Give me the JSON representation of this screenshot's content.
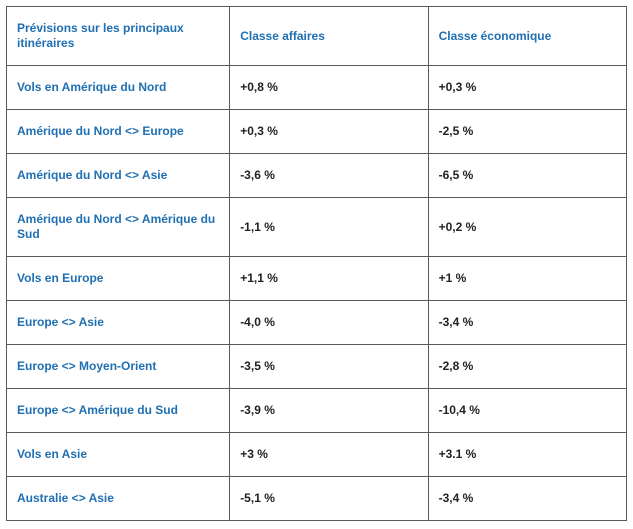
{
  "table": {
    "type": "table",
    "background_color": "#ffffff",
    "border_color": "#5a5a5a",
    "header_text_color": "#1f6fb2",
    "row_label_text_color": "#1f6fb2",
    "value_text_color": "#222222",
    "font_family": "Arial",
    "cell_fontsize_pt": 9,
    "font_weight": "bold",
    "column_widths_percent": [
      36,
      32,
      32
    ],
    "columns": [
      "Prévisions sur les principaux itinéraires",
      "Classe affaires",
      "Classe économique"
    ],
    "rows": [
      {
        "label": "Vols en Amérique du Nord",
        "business": "+0,8 %",
        "economy": "+0,3 %"
      },
      {
        "label": "Amérique du Nord <> Europe",
        "business": "+0,3 %",
        "economy": "-2,5 %"
      },
      {
        "label": "Amérique du Nord <> Asie",
        "business": "-3,6 %",
        "economy": "-6,5 %"
      },
      {
        "label": "Amérique du Nord <> Amérique du Sud",
        "business": "-1,1 %",
        "economy": "+0,2 %"
      },
      {
        "label": "Vols en Europe",
        "business": "+1,1 %",
        "economy": "+1 %"
      },
      {
        "label": "Europe <> Asie",
        "business": "-4,0 %",
        "economy": "-3,4 %"
      },
      {
        "label": "Europe <> Moyen-Orient",
        "business": "-3,5 %",
        "economy": "-2,8 %"
      },
      {
        "label": "Europe <> Amérique du Sud",
        "business": "-3,9 %",
        "economy": "-10,4 %"
      },
      {
        "label": "Vols en Asie",
        "business": "+3 %",
        "economy": "+3.1 %"
      },
      {
        "label": "Australie <> Asie",
        "business": "-5,1 %",
        "economy": "-3,4 %"
      }
    ]
  }
}
